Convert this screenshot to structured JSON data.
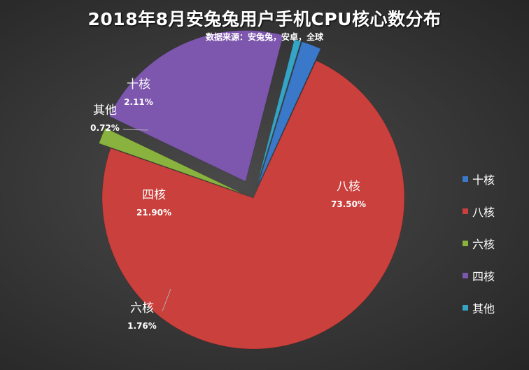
{
  "title": "2018年8月安兔兔用户手机CPU核心数分布",
  "subtitle": "数据来源：安兔兔，安卓，全球",
  "chart_data": {
    "type": "pie",
    "exploded": true,
    "start_angle_deg": 17,
    "slices": [
      {
        "label": "十核",
        "value": 2.11,
        "value_text": "2.11%",
        "color": "#3a78c9"
      },
      {
        "label": "八核",
        "value": 73.5,
        "value_text": "73.50%",
        "color": "#c9403c"
      },
      {
        "label": "六核",
        "value": 1.76,
        "value_text": "1.76%",
        "color": "#8ab23e"
      },
      {
        "label": "四核",
        "value": 21.9,
        "value_text": "21.90%",
        "color": "#7d57ad"
      },
      {
        "label": "其他",
        "value": 0.72,
        "value_text": "0.72%",
        "color": "#35a4c5"
      }
    ],
    "legend_position": "right"
  }
}
